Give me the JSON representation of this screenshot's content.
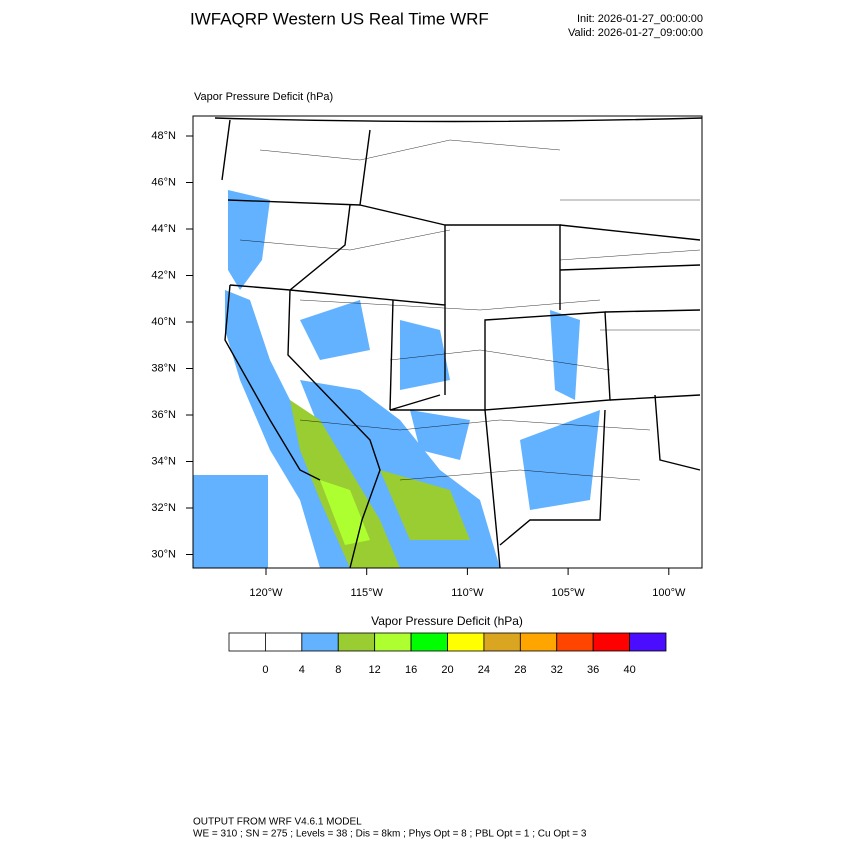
{
  "header": {
    "title": "IWFAQRP Western US Real Time WRF",
    "init": "Init: 2026-01-27_00:00:00",
    "valid": "Valid: 2026-01-27_09:00:00"
  },
  "map": {
    "subtitle": "Vapor Pressure Deficit   (hPa)",
    "lat_labels": [
      "48°N",
      "46°N",
      "44°N",
      "42°N",
      "40°N",
      "38°N",
      "36°N",
      "34°N",
      "32°N",
      "30°N"
    ],
    "lon_labels": [
      "120°W",
      "115°W",
      "110°W",
      "105°W",
      "100°W"
    ]
  },
  "colorbar": {
    "title": "Vapor Pressure Deficit  (hPa)",
    "colors": [
      "#ffffff",
      "#ffffff",
      "#62b2ff",
      "#9acd32",
      "#adff2f",
      "#00ff00",
      "#ffff00",
      "#daa520",
      "#ffa500",
      "#ff4500",
      "#ff0000",
      "#4a0dff"
    ],
    "labels": [
      0,
      4,
      8,
      12,
      16,
      20,
      24,
      28,
      32,
      36,
      40
    ]
  },
  "footer": {
    "line1": "OUTPUT FROM WRF V4.6.1 MODEL",
    "line2": "WE = 310 ; SN = 275 ; Levels = 38 ; Dis = 8km ; Phys Opt = 8 ; PBL Opt = 1 ; Cu Opt = 3"
  }
}
